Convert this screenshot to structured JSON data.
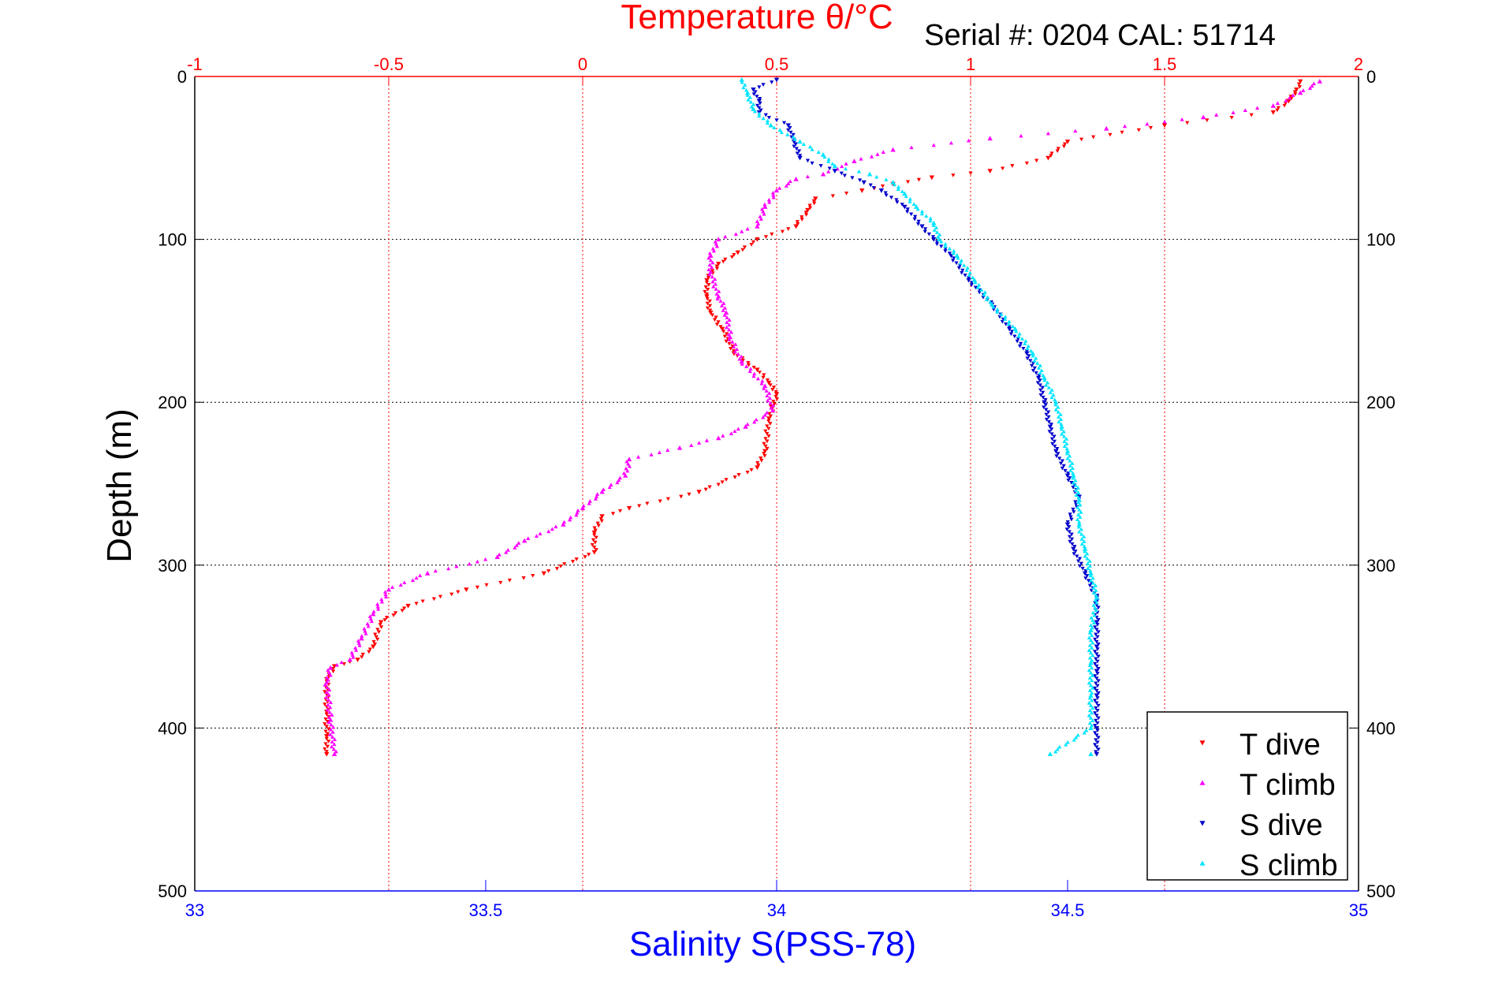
{
  "chart_data": {
    "type": "scatter",
    "title": "Temperature θ/°C",
    "subtitle": "Serial #: 0204  CAL: 51714",
    "ylabel": "Depth (m)",
    "xlabel_bottom": "Salinity S(PSS-78)",
    "xlabel_top": "Temperature θ/°C",
    "grid": true,
    "legend_placement": "bottom-right",
    "axes": {
      "depth": {
        "lim": [
          0,
          500
        ],
        "ticks": [
          "0",
          "100",
          "200",
          "300",
          "400",
          "500"
        ],
        "inverted": true
      },
      "temperature": {
        "lim": [
          -1,
          2
        ],
        "ticks": [
          "-1",
          "-0.5",
          "0",
          "0.5",
          "1",
          "1.5",
          "2"
        ],
        "position": "top"
      },
      "salinity": {
        "lim": [
          33,
          35
        ],
        "ticks": [
          "33",
          "33.5",
          "34",
          "34.5",
          "35"
        ],
        "position": "bottom"
      }
    },
    "colors": {
      "temperature_axis": "#ff0000",
      "salinity_axis": "#0000ff",
      "grid": "#000000",
      "t_dive": "#ff0000",
      "t_climb": "#ff00ff",
      "s_dive": "#0000cc",
      "s_climb": "#00e5ff"
    },
    "series": [
      {
        "name": "T dive",
        "axis": "temperature",
        "color": "#ff0000",
        "marker": "triangle-down",
        "points": [
          [
            1.85,
            3
          ],
          [
            1.84,
            8
          ],
          [
            1.82,
            15
          ],
          [
            1.78,
            22
          ],
          [
            1.5,
            30
          ],
          [
            1.25,
            40
          ],
          [
            1.2,
            50
          ],
          [
            1.05,
            58
          ],
          [
            0.9,
            62
          ],
          [
            0.8,
            66
          ],
          [
            0.72,
            70
          ],
          [
            0.6,
            75
          ],
          [
            0.58,
            82
          ],
          [
            0.55,
            92
          ],
          [
            0.45,
            100
          ],
          [
            0.4,
            108
          ],
          [
            0.35,
            115
          ],
          [
            0.32,
            125
          ],
          [
            0.32,
            135
          ],
          [
            0.33,
            145
          ],
          [
            0.36,
            155
          ],
          [
            0.39,
            170
          ],
          [
            0.45,
            180
          ],
          [
            0.48,
            188
          ],
          [
            0.5,
            195
          ],
          [
            0.48,
            210
          ],
          [
            0.47,
            230
          ],
          [
            0.45,
            240
          ],
          [
            0.3,
            255
          ],
          [
            0.12,
            265
          ],
          [
            0.05,
            270
          ],
          [
            0.03,
            280
          ],
          [
            0.03,
            292
          ],
          [
            -0.1,
            305
          ],
          [
            -0.3,
            315
          ],
          [
            -0.45,
            325
          ],
          [
            -0.52,
            335
          ],
          [
            -0.54,
            350
          ],
          [
            -0.58,
            358
          ],
          [
            -0.64,
            362
          ],
          [
            -0.66,
            370
          ],
          [
            -0.66,
            390
          ],
          [
            -0.66,
            405
          ],
          [
            -0.66,
            416
          ]
        ]
      },
      {
        "name": "T climb",
        "axis": "temperature",
        "color": "#ff00ff",
        "marker": "triangle-up",
        "points": [
          [
            1.9,
            3
          ],
          [
            1.85,
            10
          ],
          [
            1.78,
            18
          ],
          [
            1.6,
            25
          ],
          [
            1.35,
            32
          ],
          [
            1.05,
            38
          ],
          [
            0.8,
            45
          ],
          [
            0.7,
            52
          ],
          [
            0.62,
            60
          ],
          [
            0.55,
            63
          ],
          [
            0.5,
            70
          ],
          [
            0.47,
            80
          ],
          [
            0.45,
            92
          ],
          [
            0.35,
            100
          ],
          [
            0.33,
            110
          ],
          [
            0.33,
            120
          ],
          [
            0.35,
            135
          ],
          [
            0.37,
            145
          ],
          [
            0.38,
            160
          ],
          [
            0.41,
            175
          ],
          [
            0.47,
            190
          ],
          [
            0.49,
            205
          ],
          [
            0.42,
            215
          ],
          [
            0.35,
            222
          ],
          [
            0.25,
            228
          ],
          [
            0.12,
            235
          ],
          [
            0.11,
            245
          ],
          [
            0.05,
            255
          ],
          [
            0.0,
            265
          ],
          [
            -0.05,
            275
          ],
          [
            -0.15,
            285
          ],
          [
            -0.22,
            295
          ],
          [
            -0.4,
            305
          ],
          [
            -0.5,
            315
          ],
          [
            -0.54,
            330
          ],
          [
            -0.57,
            345
          ],
          [
            -0.6,
            358
          ],
          [
            -0.65,
            363
          ],
          [
            -0.66,
            372
          ],
          [
            -0.65,
            395
          ],
          [
            -0.64,
            416
          ]
        ]
      },
      {
        "name": "S dive",
        "axis": "salinity",
        "color": "#0000cc",
        "marker": "triangle-down",
        "points": [
          [
            34.0,
            2
          ],
          [
            33.96,
            8
          ],
          [
            33.97,
            15
          ],
          [
            33.97,
            22
          ],
          [
            34.02,
            30
          ],
          [
            34.03,
            40
          ],
          [
            34.04,
            50
          ],
          [
            34.1,
            58
          ],
          [
            34.15,
            65
          ],
          [
            34.18,
            70
          ],
          [
            34.22,
            80
          ],
          [
            34.25,
            92
          ],
          [
            34.27,
            100
          ],
          [
            34.3,
            110
          ],
          [
            34.33,
            125
          ],
          [
            34.37,
            140
          ],
          [
            34.4,
            155
          ],
          [
            34.43,
            170
          ],
          [
            34.45,
            185
          ],
          [
            34.46,
            200
          ],
          [
            34.47,
            215
          ],
          [
            34.48,
            230
          ],
          [
            34.5,
            245
          ],
          [
            34.52,
            258
          ],
          [
            34.5,
            275
          ],
          [
            34.51,
            290
          ],
          [
            34.53,
            305
          ],
          [
            34.55,
            320
          ],
          [
            34.55,
            335
          ],
          [
            34.55,
            350
          ],
          [
            34.55,
            365
          ],
          [
            34.55,
            380
          ],
          [
            34.55,
            400
          ],
          [
            34.55,
            416
          ]
        ]
      },
      {
        "name": "S climb",
        "axis": "salinity",
        "color": "#00e5ff",
        "marker": "triangle-up",
        "points": [
          [
            33.94,
            2
          ],
          [
            33.95,
            10
          ],
          [
            33.96,
            20
          ],
          [
            33.99,
            30
          ],
          [
            34.04,
            40
          ],
          [
            34.08,
            48
          ],
          [
            34.1,
            55
          ],
          [
            34.16,
            60
          ],
          [
            34.2,
            65
          ],
          [
            34.22,
            72
          ],
          [
            34.24,
            80
          ],
          [
            34.27,
            90
          ],
          [
            34.28,
            100
          ],
          [
            34.31,
            110
          ],
          [
            34.34,
            125
          ],
          [
            34.37,
            140
          ],
          [
            34.41,
            155
          ],
          [
            34.44,
            170
          ],
          [
            34.46,
            185
          ],
          [
            34.48,
            200
          ],
          [
            34.49,
            215
          ],
          [
            34.5,
            230
          ],
          [
            34.51,
            245
          ],
          [
            34.52,
            260
          ],
          [
            34.52,
            275
          ],
          [
            34.53,
            290
          ],
          [
            34.54,
            305
          ],
          [
            34.55,
            320
          ],
          [
            34.54,
            340
          ],
          [
            34.54,
            360
          ],
          [
            34.54,
            380
          ],
          [
            34.54,
            400
          ],
          [
            34.47,
            416
          ],
          [
            34.54,
            416
          ]
        ]
      }
    ]
  }
}
